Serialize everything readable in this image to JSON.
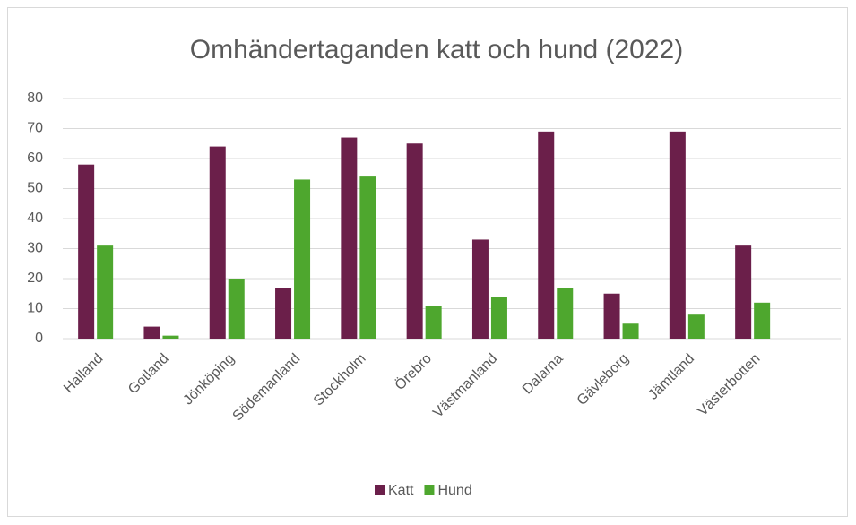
{
  "chart_data": {
    "type": "bar",
    "title": "Omhändertaganden katt och hund (2022)",
    "categories": [
      "Halland",
      "Gotland",
      "Jönköping",
      "Södemanland",
      "Stockholm",
      "Örebro",
      "Västmanland",
      "Dalarna",
      "Gävleborg",
      "Jämtland",
      "Västerbotten"
    ],
    "series": [
      {
        "name": "Katt",
        "color": "#6b1f4a",
        "values": [
          58,
          4,
          64,
          17,
          67,
          65,
          33,
          69,
          15,
          69,
          31
        ]
      },
      {
        "name": "Hund",
        "color": "#4ea72e",
        "values": [
          31,
          1,
          20,
          53,
          54,
          11,
          14,
          17,
          5,
          8,
          12
        ]
      }
    ],
    "ylim": [
      0,
      80
    ],
    "yticks": [
      0,
      10,
      20,
      30,
      40,
      50,
      60,
      70,
      80
    ],
    "grid": true,
    "legend": "bottom"
  }
}
